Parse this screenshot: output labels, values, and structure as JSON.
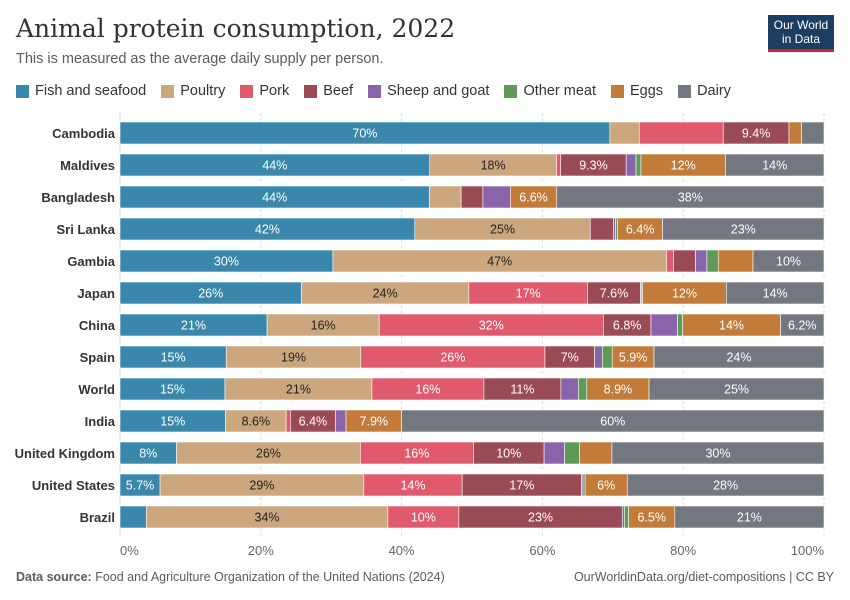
{
  "title": "Animal protein consumption, 2022",
  "subtitle": "This is measured as the average daily supply per person.",
  "logo": {
    "line1": "Our World",
    "line2": "in Data"
  },
  "footer": {
    "source_label": "Data source:",
    "source_text": "Food and Agriculture Organization of the United Nations (2024)",
    "right": "OurWorldinData.org/diet-compositions | CC BY"
  },
  "colors": {
    "Fish and seafood": "#3a87ac",
    "Poultry": "#cca77d",
    "Pork": "#e05a6d",
    "Beef": "#9a4b55",
    "Sheep and goat": "#8a64ab",
    "Other meat": "#5e9a56",
    "Eggs": "#c27b39",
    "Dairy": "#737780",
    "grid": "#dddddd",
    "text": "#333333"
  },
  "chart_data": {
    "type": "bar",
    "orientation": "horizontal",
    "stacked": true,
    "normalized": true,
    "xlim": [
      0,
      100
    ],
    "xticks": [
      "0%",
      "20%",
      "40%",
      "60%",
      "80%",
      "100%"
    ],
    "categories": [
      "Cambodia",
      "Maldives",
      "Bangladesh",
      "Sri Lanka",
      "Gambia",
      "Japan",
      "China",
      "Spain",
      "World",
      "India",
      "United Kingdom",
      "United States",
      "Brazil"
    ],
    "series": [
      {
        "name": "Fish and seafood",
        "values": [
          70,
          44,
          44,
          42,
          30,
          26,
          21,
          15,
          15,
          15,
          8,
          5.7,
          3.7
        ],
        "labels": [
          "70%",
          "44%",
          "44%",
          "42%",
          "30%",
          "26%",
          "21%",
          "15%",
          "15%",
          "15%",
          "8%",
          "5.7%",
          ""
        ]
      },
      {
        "name": "Poultry",
        "values": [
          4.2,
          18,
          4.5,
          25,
          47,
          24,
          16,
          19,
          21,
          8.6,
          26,
          29,
          34
        ],
        "labels": [
          "",
          "18%",
          "",
          "25%",
          "47%",
          "24%",
          "16%",
          "19%",
          "21%",
          "8.6%",
          "26%",
          "29%",
          "34%"
        ]
      },
      {
        "name": "Pork",
        "values": [
          12,
          0.6,
          0,
          0,
          1.0,
          17,
          32,
          26,
          16,
          0.6,
          16,
          14,
          10
        ],
        "labels": [
          "",
          "",
          "",
          "",
          "",
          "17%",
          "32%",
          "26%",
          "16%",
          "",
          "16%",
          "14%",
          "10%"
        ]
      },
      {
        "name": "Beef",
        "values": [
          9.4,
          9.3,
          3.1,
          3.3,
          3.1,
          7.6,
          6.8,
          7,
          11,
          6.4,
          10,
          17,
          23
        ],
        "labels": [
          "9.4%",
          "9.3%",
          "",
          "",
          "",
          "7.6%",
          "6.8%",
          "7%",
          "11%",
          "6.4%",
          "10%",
          "17%",
          "23%"
        ]
      },
      {
        "name": "Sheep and goat",
        "values": [
          0,
          1.4,
          3.9,
          0.3,
          1.6,
          0.1,
          3.8,
          1.1,
          2.5,
          1.5,
          2.9,
          0.2,
          0.3
        ],
        "labels": [
          "",
          "",
          "",
          "",
          "",
          "",
          "",
          "",
          "",
          "",
          "",
          "",
          ""
        ]
      },
      {
        "name": "Other meat",
        "values": [
          0,
          0.7,
          0,
          0.3,
          1.6,
          0.2,
          0.7,
          1.4,
          1.2,
          0,
          2.1,
          0.3,
          0.6
        ],
        "labels": [
          "",
          "",
          "",
          "",
          "",
          "",
          "",
          "",
          "",
          "",
          "",
          "",
          ""
        ]
      },
      {
        "name": "Eggs",
        "values": [
          1.8,
          12,
          6.6,
          6.4,
          4.9,
          12,
          14,
          5.9,
          8.9,
          7.9,
          4.6,
          6,
          6.5
        ],
        "labels": [
          "",
          "12%",
          "6.6%",
          "6.4%",
          "",
          "12%",
          "14%",
          "5.9%",
          "8.9%",
          "7.9%",
          "",
          "6%",
          "6.5%"
        ]
      },
      {
        "name": "Dairy",
        "values": [
          3.2,
          14,
          38,
          23,
          10,
          14,
          6.2,
          24,
          25,
          60,
          30,
          28,
          21
        ],
        "labels": [
          "",
          "14%",
          "38%",
          "23%",
          "10%",
          "14%",
          "6.2%",
          "24%",
          "25%",
          "60%",
          "30%",
          "28%",
          "21%"
        ]
      }
    ]
  }
}
